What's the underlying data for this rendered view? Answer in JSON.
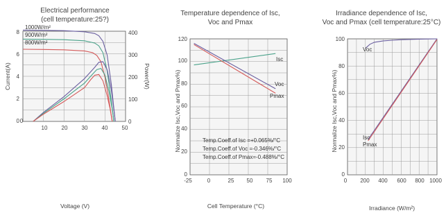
{
  "chart_data": [
    {
      "type": "line",
      "title": "Electrical performance",
      "subtitle": "(cell temperature:25?)",
      "xlabel": "Voltage (V)",
      "ylabel_left": "Current(A)",
      "ylabel_right": "Power(W)",
      "xlim": [
        0,
        50
      ],
      "ylim_left": [
        0,
        8
      ],
      "ylim_right": [
        0,
        400
      ],
      "x_ticks": [
        "0",
        "10",
        "20",
        "30",
        "40",
        "50"
      ],
      "y_ticks_left": [
        "0",
        "2",
        "4",
        "6",
        "8"
      ],
      "y_ticks_right": [
        "0",
        "100",
        "200",
        "300",
        "400"
      ],
      "grid": true,
      "series": [
        {
          "name": "1000W/m²",
          "axis": "left",
          "color": "#6a5fa0",
          "x": [
            0,
            10,
            20,
            30,
            35,
            37,
            39,
            41,
            43,
            44,
            45
          ],
          "y": [
            8.1,
            8.08,
            8.05,
            7.95,
            7.8,
            7.6,
            7.1,
            5.9,
            3.4,
            1.7,
            0
          ]
        },
        {
          "name": "900W/m²",
          "axis": "left",
          "color": "#4aa28a",
          "x": [
            0,
            10,
            20,
            30,
            35,
            37,
            39,
            41,
            42.5,
            43.5,
            44.3
          ],
          "y": [
            7.3,
            7.28,
            7.25,
            7.15,
            6.95,
            6.7,
            6.1,
            4.5,
            2.6,
            1.2,
            0
          ]
        },
        {
          "name": "800W/m²",
          "axis": "left",
          "color": "#d45a5a",
          "x": [
            0,
            10,
            20,
            30,
            34,
            36,
            38,
            40,
            41.5,
            42.5,
            43.5
          ],
          "y": [
            6.4,
            6.38,
            6.35,
            6.25,
            6.1,
            5.85,
            5.3,
            3.9,
            2.4,
            1.2,
            0
          ]
        },
        {
          "name": "",
          "axis": "right",
          "color": "#6a5fa0",
          "x": [
            5,
            10,
            20,
            30,
            35,
            37,
            39,
            41,
            43,
            44,
            45
          ],
          "y": [
            0,
            40,
            110,
            190,
            240,
            262,
            265,
            230,
            145,
            75,
            0
          ]
        },
        {
          "name": "",
          "axis": "right",
          "color": "#4aa28a",
          "x": [
            5,
            10,
            20,
            30,
            34,
            36,
            38,
            40,
            42,
            43.5,
            44.3
          ],
          "y": [
            0,
            36,
            100,
            170,
            210,
            230,
            235,
            205,
            130,
            55,
            0
          ]
        },
        {
          "name": "",
          "axis": "right",
          "color": "#d45a5a",
          "x": [
            5,
            10,
            20,
            30,
            33,
            35,
            37,
            39,
            41,
            42.5,
            43.5
          ],
          "y": [
            0,
            32,
            88,
            150,
            185,
            205,
            208,
            180,
            115,
            55,
            0
          ]
        }
      ]
    },
    {
      "type": "line",
      "title": "Temperature dependence of Isc,",
      "subtitle": "Voc and Pmax",
      "xlabel": "Cell Temperature (°C)",
      "ylabel": "Normalize Isc,Voc and Pmax%)",
      "xlim": [
        -25,
        100
      ],
      "ylim": [
        0,
        120
      ],
      "x_ticks": [
        "-25",
        "0",
        "25",
        "50",
        "75",
        "100"
      ],
      "y_ticks": [
        "0",
        "20",
        "40",
        "60",
        "80",
        "100",
        "120"
      ],
      "grid": true,
      "annotations": [
        "Temp.Coeff.of Isc =+0.065%/°C",
        "Temp.Coeff.of Voc =-0.346%/°C",
        "Temp.Coeff.of Pmax=-0.488%/°C"
      ],
      "series": [
        {
          "name": "Isc",
          "color": "#4aa28a",
          "x": [
            -20,
            85
          ],
          "y": [
            97,
            107
          ]
        },
        {
          "name": "Voc",
          "color": "#6a5fa0",
          "x": [
            -20,
            85
          ],
          "y": [
            116,
            76
          ]
        },
        {
          "name": "Pmax",
          "color": "#d45a5a",
          "x": [
            -20,
            85
          ],
          "y": [
            115,
            72
          ]
        }
      ]
    },
    {
      "type": "line",
      "title": "Irradiance dependence of Isc,",
      "subtitle": "Voc and Pmax (cell temperature:25°C)",
      "xlabel": "Irradiance (W/m²)",
      "ylabel": "Normalize Isc,Voc and Pmax%)",
      "xlim": [
        0,
        1000
      ],
      "ylim": [
        0,
        100
      ],
      "x_ticks": [
        "0",
        "200",
        "400",
        "600",
        "800",
        "1000"
      ],
      "y_ticks": [
        "0",
        "20",
        "40",
        "60",
        "80",
        "100"
      ],
      "grid": true,
      "series": [
        {
          "name": "Voc",
          "color": "#6a5fa0",
          "x": [
            200,
            250,
            300,
            400,
            500,
            600,
            700,
            800,
            900,
            1000
          ],
          "y": [
            93,
            96,
            97.5,
            98.5,
            99,
            99.4,
            99.6,
            99.8,
            99.9,
            100
          ]
        },
        {
          "name": "Isc",
          "color": "#6a5fa0",
          "x": [
            230,
            1000
          ],
          "y": [
            26,
            100
          ]
        },
        {
          "name": "Pmax",
          "color": "#d45a5a",
          "x": [
            230,
            1000
          ],
          "y": [
            25,
            99.5
          ]
        }
      ]
    }
  ]
}
